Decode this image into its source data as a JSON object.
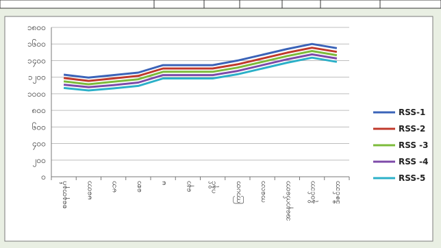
{
  "chart_data": {
    "type": "line",
    "categories": [
      "စနေတနင်္ဂ",
      "မတော",
      "မဘ",
      "စော",
      "မ",
      "နော",
      "ဂနိုင်",
      "ကြာပတ",
      "ကလော",
      "အနောက်တော",
      "နိုဝင်ဘာ",
      "ဒီဇင်ဘာ"
    ],
    "yticks": [
      "၁၈၀၀",
      "၁၆၀၀",
      "၁၄၀၀",
      "၁၂၀၀",
      "၁၀၀၀",
      "၈၀၀",
      "၆၀၀",
      "၄၀၀",
      "၂၀၀",
      "၀"
    ],
    "ylim": [
      0,
      1800
    ],
    "series": [
      {
        "name": "RSS-1",
        "color": "#3a63b8",
        "values": [
          1230,
          1195,
          1225,
          1255,
          1345,
          1345,
          1345,
          1400,
          1470,
          1540,
          1600,
          1550
        ]
      },
      {
        "name": "RSS-2",
        "color": "#c0392b",
        "values": [
          1190,
          1155,
          1185,
          1215,
          1305,
          1305,
          1305,
          1355,
          1425,
          1495,
          1555,
          1505
        ]
      },
      {
        "name": "RSS -3",
        "color": "#7cbb3a",
        "values": [
          1150,
          1115,
          1145,
          1175,
          1265,
          1265,
          1265,
          1315,
          1385,
          1455,
          1515,
          1465
        ]
      },
      {
        "name": "RSS -4",
        "color": "#7d4aa8",
        "values": [
          1110,
          1080,
          1105,
          1135,
          1225,
          1225,
          1225,
          1275,
          1345,
          1415,
          1475,
          1425
        ]
      },
      {
        "name": "RSS-5",
        "color": "#2bb0c8",
        "values": [
          1070,
          1040,
          1065,
          1095,
          1185,
          1185,
          1185,
          1235,
          1305,
          1375,
          1435,
          1385
        ]
      }
    ],
    "legend_position": "right",
    "grid": true
  }
}
